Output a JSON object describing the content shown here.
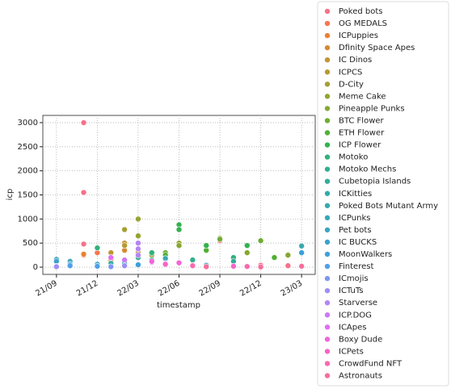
{
  "chart_data": {
    "type": "scatter",
    "x_label": "timestamp",
    "y_label": "icp",
    "xlim": [
      "2021-08",
      "2023-04"
    ],
    "xticks": [
      {
        "value": "2021-09",
        "label": "21/09"
      },
      {
        "value": "2021-12",
        "label": "21/12"
      },
      {
        "value": "2022-03",
        "label": "22/03"
      },
      {
        "value": "2022-06",
        "label": "22/06"
      },
      {
        "value": "2022-09",
        "label": "22/09"
      },
      {
        "value": "2022-12",
        "label": "22/12"
      },
      {
        "value": "2023-03",
        "label": "23/03"
      }
    ],
    "ylim": [
      -150,
      3150
    ],
    "yticks": [
      0,
      500,
      1000,
      1500,
      2000,
      2500,
      3000
    ],
    "grid": true,
    "legend": "outside right",
    "series": [
      {
        "name": "Poked bots",
        "color": "#f77189",
        "x": [
          "2021-11",
          "2021-11",
          "2021-11",
          "2022-09",
          "2022-12",
          "2023-02"
        ],
        "values": [
          3000,
          1550,
          480,
          550,
          40,
          30
        ]
      },
      {
        "name": "OG MEDALS",
        "color": "#f7754f",
        "x": [
          "2021-11",
          "2021-12"
        ],
        "values": [
          250,
          300
        ]
      },
      {
        "name": "ICPuppies",
        "color": "#e98132",
        "x": [
          "2021-11",
          "2022-01"
        ],
        "values": [
          270,
          200
        ]
      },
      {
        "name": "Dfinity Space Apes",
        "color": "#d58c32",
        "x": [
          "2022-01",
          "2022-02"
        ],
        "values": [
          150,
          350
        ]
      },
      {
        "name": "IC Dinos",
        "color": "#c39532",
        "x": [
          "2022-01",
          "2022-02"
        ],
        "values": [
          300,
          500
        ]
      },
      {
        "name": "ICPCS",
        "color": "#b59b32",
        "x": [
          "2022-02",
          "2022-03"
        ],
        "values": [
          450,
          300
        ]
      },
      {
        "name": "D-City",
        "color": "#a5a031",
        "x": [
          "2022-02",
          "2022-04"
        ],
        "values": [
          780,
          250
        ]
      },
      {
        "name": "Meme Cake",
        "color": "#97a431",
        "x": [
          "2022-03",
          "2022-03",
          "2022-06"
        ],
        "values": [
          1000,
          650,
          500
        ]
      },
      {
        "name": "Pineapple Punks",
        "color": "#86a831",
        "x": [
          "2022-06",
          "2022-09",
          "2022-11",
          "2023-02"
        ],
        "values": [
          450,
          600,
          300,
          250
        ]
      },
      {
        "name": "BTC Flower",
        "color": "#6fac31",
        "x": [
          "2022-05",
          "2022-09",
          "2022-12"
        ],
        "values": [
          300,
          580,
          550
        ]
      },
      {
        "name": "ETH Flower",
        "color": "#4fb031",
        "x": [
          "2022-05",
          "2022-08",
          "2023-01"
        ],
        "values": [
          250,
          350,
          200
        ]
      },
      {
        "name": "ICP Flower",
        "color": "#32b24f",
        "x": [
          "2022-06",
          "2022-06",
          "2022-08",
          "2022-11"
        ],
        "values": [
          880,
          780,
          450,
          450
        ]
      },
      {
        "name": "Motoko",
        "color": "#33b07a",
        "x": [
          "2021-12",
          "2022-04",
          "2022-10"
        ],
        "values": [
          400,
          300,
          200
        ]
      },
      {
        "name": "Motoko Mechs",
        "color": "#34ae8e",
        "x": [
          "2022-03",
          "2022-07"
        ],
        "values": [
          200,
          150
        ]
      },
      {
        "name": "Cubetopia Islands",
        "color": "#35ac9b",
        "x": [
          "2022-04",
          "2022-10"
        ],
        "values": [
          150,
          120
        ]
      },
      {
        "name": "ICKitties",
        "color": "#36aba5",
        "x": [
          "2021-10",
          "2022-01"
        ],
        "values": [
          100,
          80
        ]
      },
      {
        "name": "Poked Bots Mutant Army",
        "color": "#37a9ae",
        "x": [
          "2022-05",
          "2023-03"
        ],
        "values": [
          180,
          440
        ]
      },
      {
        "name": "ICPunks",
        "color": "#38a7b7",
        "x": [
          "2021-09",
          "2021-10",
          "2022-02"
        ],
        "values": [
          160,
          120,
          90
        ]
      },
      {
        "name": "Pet bots",
        "color": "#39a5c1",
        "x": [
          "2021-12",
          "2022-08"
        ],
        "values": [
          60,
          40
        ]
      },
      {
        "name": "IC BUCKS",
        "color": "#3ba3cd",
        "x": [
          "2021-09",
          "2021-10"
        ],
        "values": [
          120,
          60
        ]
      },
      {
        "name": "MoonWalkers",
        "color": "#3d9fdc",
        "x": [
          "2022-03",
          "2023-03"
        ],
        "values": [
          50,
          300
        ]
      },
      {
        "name": "Finterest",
        "color": "#50a0e8",
        "x": [
          "2021-10",
          "2021-12"
        ],
        "values": [
          30,
          20
        ]
      },
      {
        "name": "ICmojis",
        "color": "#7e97f4",
        "x": [
          "2021-09",
          "2022-01"
        ],
        "values": [
          20,
          10
        ]
      },
      {
        "name": "ICTuTs",
        "color": "#9c8ff4",
        "x": [
          "2021-09",
          "2022-02"
        ],
        "values": [
          10,
          30
        ]
      },
      {
        "name": "Starverse",
        "color": "#b585f4",
        "x": [
          "2022-03",
          "2022-03",
          "2022-03"
        ],
        "values": [
          500,
          380,
          250
        ]
      },
      {
        "name": "ICP.DOG",
        "color": "#cc79f4",
        "x": [
          "2022-02",
          "2022-04"
        ],
        "values": [
          150,
          100
        ]
      },
      {
        "name": "ICApes",
        "color": "#e06ef4",
        "x": [
          "2022-01",
          "2022-05"
        ],
        "values": [
          200,
          80
        ]
      },
      {
        "name": "Boxy Dude",
        "color": "#f264d9",
        "x": [
          "2022-04",
          "2022-06"
        ],
        "values": [
          120,
          90
        ]
      },
      {
        "name": "ICPets",
        "color": "#f565c6",
        "x": [
          "2022-05",
          "2022-07",
          "2022-10"
        ],
        "values": [
          60,
          40,
          20
        ]
      },
      {
        "name": "CrowdFund NFT",
        "color": "#f66bb0",
        "x": [
          "2022-07",
          "2022-11"
        ],
        "values": [
          30,
          15
        ]
      },
      {
        "name": "Astronauts",
        "color": "#f66e9c",
        "x": [
          "2022-08",
          "2022-12",
          "2023-03"
        ],
        "values": [
          10,
          5,
          20
        ]
      }
    ]
  }
}
